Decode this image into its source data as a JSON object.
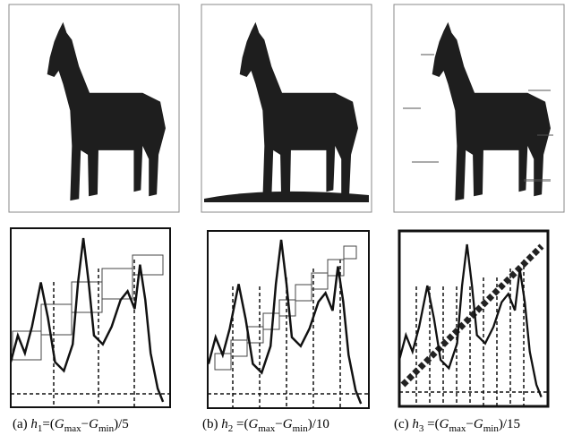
{
  "figure": {
    "captions": [
      [
        {
          "text": "(a) "
        },
        {
          "text": "h",
          "italic": true
        },
        {
          "text": "1",
          "sub": true
        },
        {
          "text": "=("
        },
        {
          "text": "G",
          "italic": true
        },
        {
          "text": "max",
          "sub": true
        },
        {
          "text": "−"
        },
        {
          "text": "G",
          "italic": true
        },
        {
          "text": "min",
          "sub": true
        },
        {
          "text": ")/5"
        }
      ],
      [
        {
          "text": "(b) "
        },
        {
          "text": "h",
          "italic": true
        },
        {
          "text": "2",
          "sub": true
        },
        {
          "text": " =("
        },
        {
          "text": "G",
          "italic": true
        },
        {
          "text": "max",
          "sub": true
        },
        {
          "text": "−"
        },
        {
          "text": "G",
          "italic": true
        },
        {
          "text": "min",
          "sub": true
        },
        {
          "text": ")/10"
        }
      ],
      [
        {
          "text": "(c) "
        },
        {
          "text": "h",
          "italic": true
        },
        {
          "text": "3",
          "sub": true
        },
        {
          "text": " =("
        },
        {
          "text": "G",
          "italic": true
        },
        {
          "text": "max",
          "sub": true
        },
        {
          "text": "−"
        },
        {
          "text": "G",
          "italic": true
        },
        {
          "text": "min",
          "sub": true
        },
        {
          "text": ")/15"
        }
      ]
    ]
  }
}
